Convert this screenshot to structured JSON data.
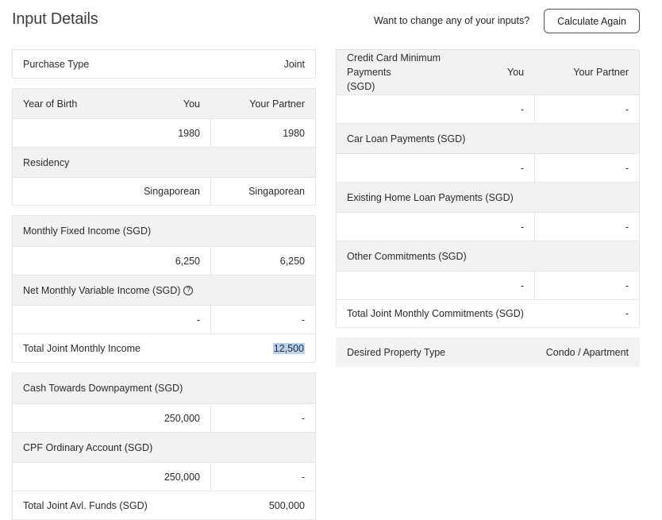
{
  "header": {
    "title": "Input Details",
    "change_prompt": "Want to change any of your inputs?",
    "calculate_again_label": "Calculate Again"
  },
  "purchase_type": {
    "label": "Purchase Type",
    "value": "Joint"
  },
  "personal": {
    "yob_label": "Year of Birth",
    "you_label": "You",
    "partner_label": "Your Partner",
    "yob_you": "1980",
    "yob_partner": "1980",
    "residency_label": "Residency",
    "residency_you": "Singaporean",
    "residency_partner": "Singaporean"
  },
  "income": {
    "fixed_label": "Monthly Fixed Income (SGD)",
    "fixed_you": "6,250",
    "fixed_partner": "6,250",
    "variable_label": "Net Monthly Variable Income (SGD)",
    "variable_you": "-",
    "variable_partner": "-",
    "total_label": "Total Joint Monthly Income",
    "total_value": "12,500"
  },
  "funds": {
    "cash_label": "Cash Towards Downpayment (SGD)",
    "cash_you": "250,000",
    "cash_partner": "-",
    "cpf_label": "CPF Ordinary Account (SGD)",
    "cpf_you": "250,000",
    "cpf_partner": "-",
    "total_label": "Total Joint Avl. Funds (SGD)",
    "total_value": "500,000"
  },
  "commitments": {
    "you_label": "You",
    "partner_label": "Your Partner",
    "credit_card_label_1": "Credit Card Minimum Payments",
    "credit_card_label_2": "(SGD)",
    "credit_card_you": "-",
    "credit_card_partner": "-",
    "car_loan_label": "Car Loan Payments (SGD)",
    "car_loan_you": "-",
    "car_loan_partner": "-",
    "home_loan_label": "Existing Home Loan Payments (SGD)",
    "home_loan_you": "-",
    "home_loan_partner": "-",
    "other_label": "Other Commitments (SGD)",
    "other_you": "-",
    "other_partner": "-",
    "total_label": "Total Joint Monthly Commitments (SGD)",
    "total_value": "-"
  },
  "property": {
    "label": "Desired Property Type",
    "value": "Condo / Apartment"
  },
  "icons": {
    "help": "?"
  }
}
